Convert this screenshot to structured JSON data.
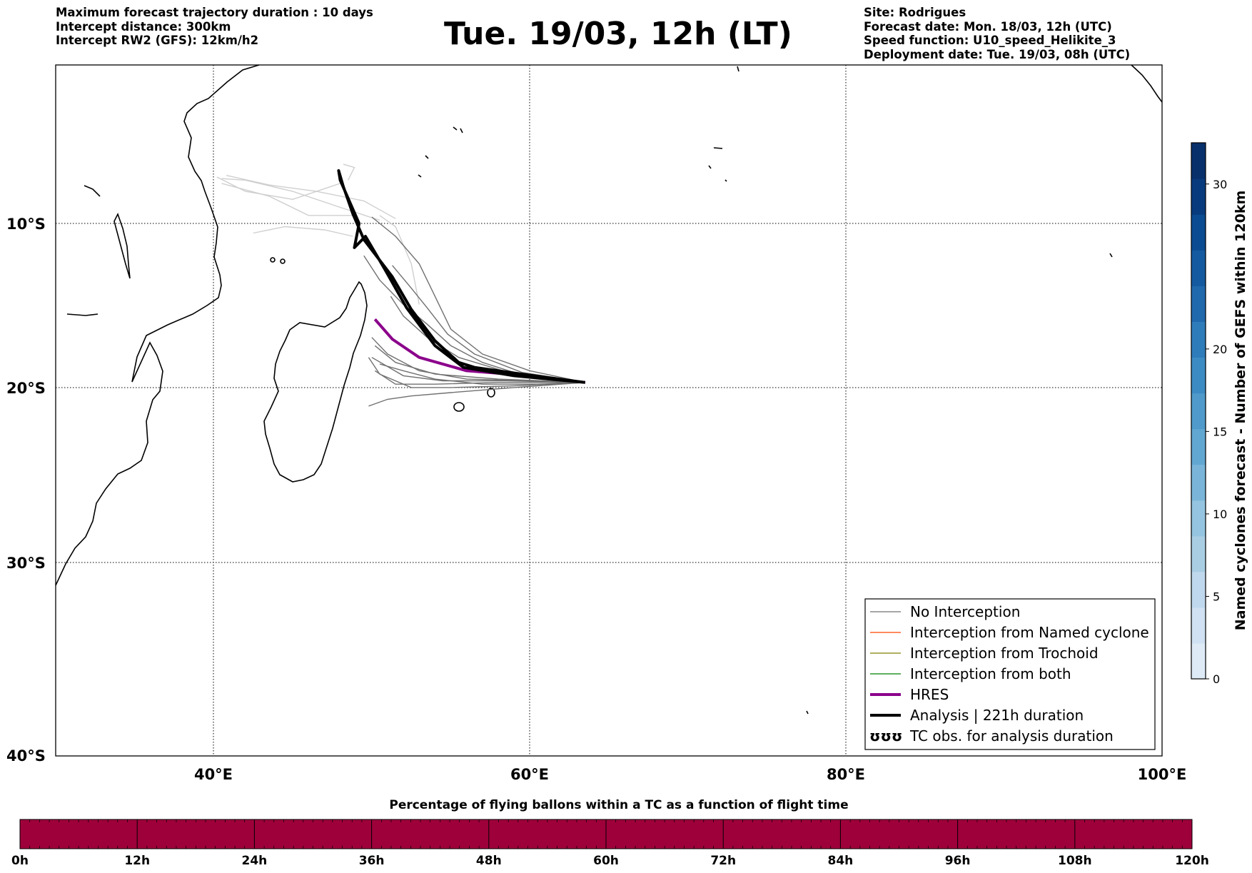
{
  "header": {
    "left_lines": [
      "Maximum forecast trajectory duration : 10 days",
      "Intercept distance: 300km",
      "Intercept RW2 (GFS):  12km/h2"
    ],
    "title": "Tue. 19/03, 12h (LT)",
    "right_lines": [
      "Site: Rodrigues",
      "Forecast date: Mon. 18/03, 12h (UTC)",
      "Speed function: U10_speed_Helikite_3",
      "Deployment date: Tue. 19/03, 08h (UTC)"
    ]
  },
  "map": {
    "lat_labels": [
      "10°S",
      "20°S",
      "30°S",
      "40°S"
    ],
    "lon_labels": [
      "40°E",
      "60°E",
      "80°E",
      "100°E"
    ],
    "lon_range": [
      30,
      100
    ],
    "lat_range": [
      -40,
      -0.3
    ],
    "colors": {
      "no_interception": "#707070",
      "light_tracks": "#cfcfcf",
      "hres": "#8b008b",
      "analysis": "#000000",
      "named_cyclone": "#ff4500",
      "trochoid": "#808000",
      "both": "#008000"
    },
    "legend": [
      {
        "label": "No Interception",
        "color": "#707070",
        "width": 1.2
      },
      {
        "label": "Interception from Named cyclone",
        "color": "#ff4500",
        "width": 1.2
      },
      {
        "label": "Interception from Trochoid",
        "color": "#808000",
        "width": 1.2
      },
      {
        "label": "Interception from both",
        "color": "#008000",
        "width": 1.2
      },
      {
        "label": "HRES",
        "color": "#8b008b",
        "width": 4
      },
      {
        "label": "Analysis | 221h duration",
        "color": "#000000",
        "width": 4
      },
      {
        "label": "TC obs. for analysis duration",
        "color": "#000000",
        "width": 0,
        "symbol": "ʊʊʊ"
      }
    ],
    "tracks": {
      "hres": [
        [
          63.5,
          -19.7
        ],
        [
          60,
          -19.3
        ],
        [
          56,
          -19
        ],
        [
          53,
          -18.2
        ],
        [
          51.3,
          -17.1
        ],
        [
          50.2,
          -15.9
        ]
      ],
      "analysis": [
        [
          63.5,
          -19.7
        ],
        [
          59.5,
          -19.2
        ],
        [
          56.5,
          -18.8
        ],
        [
          55.5,
          -18.5
        ],
        [
          54,
          -17.2
        ],
        [
          52.5,
          -15.3
        ],
        [
          51.3,
          -13.3
        ],
        [
          49.5,
          -11
        ],
        [
          48.8,
          -9.4
        ],
        [
          48.2,
          -7.7
        ],
        [
          47.9,
          -6.7
        ],
        [
          48.0,
          -7.3
        ],
        [
          49.2,
          -10
        ],
        [
          48.9,
          -11.5
        ],
        [
          49.6,
          -10.8
        ],
        [
          50.8,
          -12.8
        ],
        [
          52.2,
          -15.2
        ],
        [
          54,
          -17.5
        ],
        [
          55.8,
          -18.8
        ],
        [
          59,
          -19.3
        ],
        [
          63.5,
          -19.7
        ]
      ],
      "ensemble_dark": [
        [
          [
            63.5,
            -19.7
          ],
          [
            58,
            -19.5
          ],
          [
            54,
            -19.2
          ],
          [
            51.5,
            -18.5
          ],
          [
            50.2,
            -17.5
          ]
        ],
        [
          [
            63.5,
            -19.7
          ],
          [
            58.5,
            -19.6
          ],
          [
            54.5,
            -19.6
          ],
          [
            52,
            -19.3
          ],
          [
            50,
            -18.2
          ]
        ],
        [
          [
            63.5,
            -19.7
          ],
          [
            59,
            -19.9
          ],
          [
            55,
            -20
          ],
          [
            52.5,
            -20
          ],
          [
            50.5,
            -19.2
          ],
          [
            49.8,
            -18.2
          ]
        ],
        [
          [
            63.5,
            -19.7
          ],
          [
            59,
            -20
          ],
          [
            55,
            -20.3
          ],
          [
            52.5,
            -20.5
          ],
          [
            51,
            -20.7
          ],
          [
            49.8,
            -21.1
          ]
        ],
        [
          [
            63.5,
            -19.7
          ],
          [
            60,
            -19.4
          ],
          [
            57,
            -18.5
          ],
          [
            55,
            -17.5
          ],
          [
            53.5,
            -16.2
          ],
          [
            52,
            -15
          ],
          [
            50.5,
            -13.5
          ],
          [
            49.5,
            -12
          ]
        ],
        [
          [
            63.5,
            -19.7
          ],
          [
            59.5,
            -19.1
          ],
          [
            56.5,
            -18
          ],
          [
            54.8,
            -16.8
          ],
          [
            53.5,
            -15.2
          ],
          [
            52.5,
            -14
          ],
          [
            51.3,
            -12.6
          ]
        ],
        [
          [
            63.5,
            -19.7
          ],
          [
            60,
            -19.6
          ],
          [
            56,
            -19.5
          ],
          [
            53,
            -19
          ],
          [
            51,
            -18
          ],
          [
            50,
            -17
          ]
        ],
        [
          [
            63.5,
            -19.7
          ],
          [
            60.5,
            -19.8
          ],
          [
            57,
            -19.8
          ],
          [
            54,
            -19.5
          ],
          [
            52,
            -19
          ],
          [
            50.5,
            -18.6
          ]
        ],
        [
          [
            63.5,
            -19.7
          ],
          [
            60,
            -19
          ],
          [
            57,
            -18
          ],
          [
            55,
            -16.5
          ],
          [
            54,
            -14.5
          ],
          [
            53,
            -12.5
          ],
          [
            51.5,
            -10.8
          ],
          [
            50,
            -9.6
          ]
        ],
        [
          [
            63.5,
            -19.7
          ],
          [
            59,
            -19.2
          ],
          [
            55.5,
            -18.2
          ],
          [
            53.5,
            -17
          ],
          [
            52,
            -15.7
          ],
          [
            51.2,
            -14.5
          ]
        ],
        [
          [
            63.5,
            -19.7
          ],
          [
            58,
            -19.7
          ],
          [
            54,
            -19.8
          ],
          [
            51.5,
            -19.8
          ],
          [
            50.2,
            -19
          ]
        ]
      ],
      "ensemble_light": [
        [
          [
            48,
            -7.5
          ],
          [
            45,
            -8.5
          ],
          [
            42,
            -8
          ],
          [
            40.2,
            -7.1
          ]
        ],
        [
          [
            49,
            -9.5
          ],
          [
            46,
            -9.5
          ],
          [
            43.5,
            -8.3
          ],
          [
            40.5,
            -7.5
          ]
        ],
        [
          [
            50.5,
            -9.8
          ],
          [
            48,
            -9
          ],
          [
            45,
            -8
          ],
          [
            42,
            -7.3
          ],
          [
            40.5,
            -7.2
          ]
        ],
        [
          [
            53,
            -15
          ],
          [
            52.5,
            -12.5
          ],
          [
            51.5,
            -10.2
          ],
          [
            50.5,
            -9.5
          ]
        ],
        [
          [
            51.5,
            -9.7
          ],
          [
            49.5,
            -8.6
          ],
          [
            46.5,
            -8
          ],
          [
            43.5,
            -7.6
          ],
          [
            40.8,
            -7
          ]
        ],
        [
          [
            48.8,
            -10.8
          ],
          [
            47,
            -10.4
          ],
          [
            44.5,
            -10.2
          ],
          [
            42.5,
            -10.6
          ]
        ],
        [
          [
            48.5,
            -7.3
          ],
          [
            48.9,
            -6.5
          ],
          [
            48.2,
            -6.3
          ]
        ]
      ]
    }
  },
  "colorbar_right": {
    "label": "Named cyclones forecast - Number of GEFS within 120km",
    "ticks": [
      "0",
      "5",
      "10",
      "15",
      "20",
      "30"
    ],
    "colors": [
      "#deebf7",
      "#cfe1f2",
      "#c0d8ed",
      "#a9cee4",
      "#94c4df",
      "#7ab5d9",
      "#62a7d2",
      "#4f9acb",
      "#3d8bc3",
      "#2f7cbb",
      "#2169ad",
      "#145aa0",
      "#0b4b91",
      "#083b7d",
      "#08306b"
    ]
  },
  "bottom_bar": {
    "title": "Percentage of flying ballons within a TC as a function of flight time",
    "ticks": [
      "0h",
      "12h",
      "24h",
      "36h",
      "48h",
      "60h",
      "72h",
      "84h",
      "96h",
      "108h",
      "120h"
    ],
    "fill": "#9e003a"
  }
}
